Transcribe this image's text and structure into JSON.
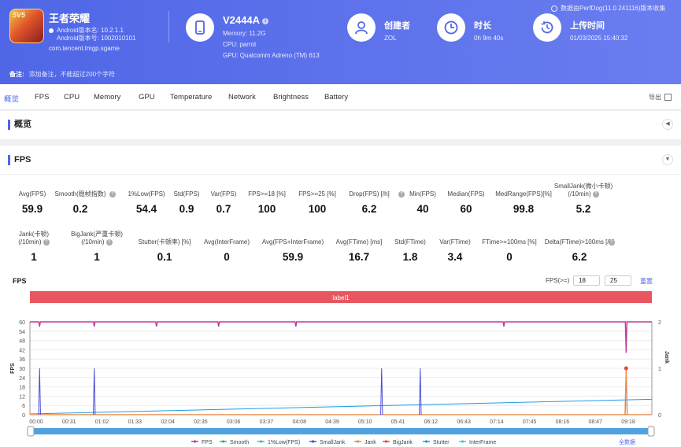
{
  "app": {
    "name": "王者荣耀",
    "icon_text": "5V5",
    "android_version": "Android版本名: 10.2.1.1",
    "android_code": "Android版本号: 1002010101",
    "package": "com.tencent.tmgp.sgame"
  },
  "device": {
    "name": "V2444A",
    "memory": "Memory: 11.2G",
    "cpu": "CPU: parrot",
    "gpu": "GPU: Qualcomm Adreno (TM) 613"
  },
  "creator": {
    "title": "创建者",
    "value": "ZOL"
  },
  "duration": {
    "title": "时长",
    "value": "0h 9m 40s"
  },
  "upload": {
    "title": "上传时间",
    "value": "01/03/2025 15:40:32"
  },
  "version_note": "数据由PerfDog(11.0.241116)版本收集",
  "remark": {
    "label": "备注:",
    "placeholder": "添加备注，不能超过200个字符"
  },
  "tabs": [
    "概览",
    "FPS",
    "CPU",
    "Memory",
    "GPU",
    "Temperature",
    "Network",
    "Brightness",
    "Battery"
  ],
  "export_label": "导出",
  "overview_title": "概览",
  "fps_title": "FPS",
  "metrics_row1": [
    {
      "label": "Avg(FPS)",
      "value": "59.9"
    },
    {
      "label": "Smooth(稳帧指数)",
      "value": "0.2",
      "help": true
    },
    {
      "label": "1%Low(FPS)",
      "value": "54.4"
    },
    {
      "label": "Std(FPS)",
      "value": "0.9"
    },
    {
      "label": "Var(FPS)",
      "value": "0.7"
    },
    {
      "label": "FPS>=18 [%]",
      "value": "100"
    },
    {
      "label": "FPS>=25 [%]",
      "value": "100"
    },
    {
      "label": "Drop(FPS) [/h]",
      "value": "6.2",
      "help": true
    },
    {
      "label": "Min(FPS)",
      "value": "40"
    },
    {
      "label": "Median(FPS)",
      "value": "60"
    },
    {
      "label": "MedRange(FPS)[%]",
      "value": "99.8"
    },
    {
      "label": "SmallJank(微小卡顿)",
      "label2": "(/10min)",
      "value": "5.2",
      "help": true
    }
  ],
  "metrics_row2": [
    {
      "label": "Jank(卡顿)",
      "label2": "(/10min)",
      "value": "1",
      "help": true
    },
    {
      "label": "BigJank(严重卡顿)",
      "label2": "(/10min)",
      "value": "1",
      "help": true
    },
    {
      "label": "Stutter(卡顿率) [%]",
      "value": "0.1"
    },
    {
      "label": "Avg(InterFrame)",
      "value": "0"
    },
    {
      "label": "Avg(FPS+InterFrame)",
      "value": "59.9"
    },
    {
      "label": "Avg(FTime) [ms]",
      "value": "16.7"
    },
    {
      "label": "Std(FTime)",
      "value": "1.8"
    },
    {
      "label": "Var(FTime)",
      "value": "3.4"
    },
    {
      "label": "FTime>=100ms [%]",
      "value": "0"
    },
    {
      "label": "Delta(FTime)>100ms [/h]",
      "value": "6.2",
      "help": true
    }
  ],
  "fps_filter": {
    "label": "FPS(>=)",
    "v1": "18",
    "v2": "25",
    "reset": "重置"
  },
  "chart_data": {
    "type": "line",
    "title": "FPS",
    "label_bar": "label1",
    "ylabel": "FPS",
    "y2label": "Jank",
    "ylim": [
      0,
      60
    ],
    "y_ticks": [
      0,
      6,
      12,
      18,
      24,
      30,
      36,
      42,
      48,
      54,
      60
    ],
    "y2lim": [
      0,
      2
    ],
    "y2_ticks": [
      0,
      1,
      2
    ],
    "x_ticks": [
      "00:00",
      "00:31",
      "01:02",
      "01:33",
      "02:04",
      "02:35",
      "03:06",
      "03:37",
      "04:08",
      "04:39",
      "05:10",
      "05:41",
      "06:12",
      "06:43",
      "07:14",
      "07:45",
      "08:16",
      "08:47",
      "09:18"
    ],
    "x_max_sec": 580,
    "grid": true,
    "series": [
      {
        "name": "FPS",
        "color": "#c0399e",
        "baseline": 60,
        "dips": [
          [
            9,
            57
          ],
          [
            60,
            57
          ],
          [
            118,
            57
          ],
          [
            176,
            57
          ],
          [
            248,
            57
          ],
          [
            442,
            57
          ],
          [
            556,
            40
          ]
        ]
      },
      {
        "name": "Smooth",
        "color": "#3db46d"
      },
      {
        "name": "1%Low(FPS)",
        "color": "#3bbfa6"
      },
      {
        "name": "SmallJank",
        "color": "#4a4fd6",
        "spikes_sec": [
          9,
          60,
          328,
          364,
          556
        ]
      },
      {
        "name": "Jank",
        "color": "#f08b3a",
        "spikes_sec": [
          556
        ]
      },
      {
        "name": "BigJank",
        "color": "#e84545",
        "spikes_sec": [
          556
        ]
      },
      {
        "name": "Stutter",
        "color": "#1e9de0",
        "from": 0.5,
        "to": 10
      },
      {
        "name": "InterFrame",
        "color": "#45c7d3"
      }
    ],
    "legend_position": "bottom",
    "zoom_label": "全数据"
  }
}
